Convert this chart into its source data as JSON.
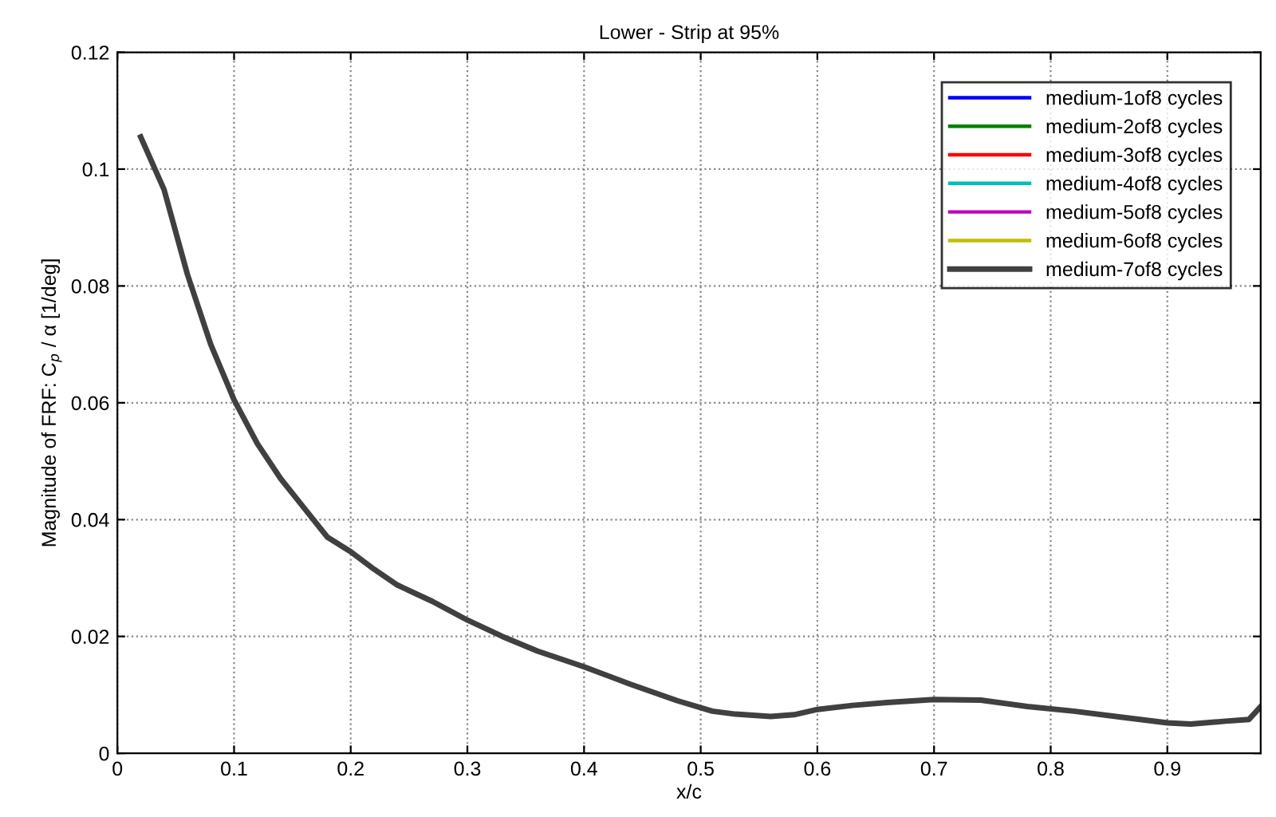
{
  "chart_data": {
    "type": "line",
    "title": "Lower - Strip at 95%",
    "xlabel": "x/c",
    "ylabel": "Magnitude of FRF: C$_{p}$ / α [1/deg]",
    "x": [
      0.02,
      0.04,
      0.06,
      0.08,
      0.1,
      0.12,
      0.14,
      0.16,
      0.18,
      0.2,
      0.22,
      0.24,
      0.27,
      0.3,
      0.33,
      0.36,
      0.4,
      0.44,
      0.48,
      0.51,
      0.53,
      0.56,
      0.58,
      0.6,
      0.63,
      0.66,
      0.7,
      0.74,
      0.78,
      0.82,
      0.86,
      0.9,
      0.92,
      0.95,
      0.97,
      0.98
    ],
    "series": [
      {
        "name": "medium-1of8 cycles",
        "color": "#0000ff",
        "values": [
          null,
          null,
          null,
          null,
          null,
          null,
          null,
          null,
          null,
          null,
          null,
          null,
          null,
          null,
          null,
          null,
          null,
          null,
          null,
          null,
          null,
          null,
          null,
          null,
          null,
          null,
          null,
          null,
          null,
          null,
          null,
          null,
          null,
          null,
          null,
          null
        ]
      },
      {
        "name": "medium-2of8 cycles",
        "color": "#008000",
        "values": [
          null,
          null,
          null,
          null,
          null,
          null,
          null,
          null,
          null,
          null,
          null,
          null,
          null,
          null,
          null,
          null,
          null,
          null,
          null,
          null,
          null,
          null,
          null,
          null,
          null,
          null,
          null,
          null,
          null,
          null,
          null,
          null,
          null,
          null,
          null,
          null
        ]
      },
      {
        "name": "medium-3of8 cycles",
        "color": "#ff0000",
        "values": [
          null,
          null,
          null,
          null,
          null,
          null,
          null,
          null,
          null,
          null,
          null,
          null,
          null,
          null,
          null,
          null,
          null,
          null,
          null,
          null,
          null,
          null,
          null,
          null,
          null,
          null,
          null,
          null,
          null,
          null,
          null,
          null,
          null,
          null,
          null,
          null
        ]
      },
      {
        "name": "medium-4of8 cycles",
        "color": "#00bfbf",
        "values": [
          null,
          null,
          null,
          null,
          null,
          null,
          null,
          null,
          null,
          null,
          null,
          null,
          null,
          null,
          null,
          null,
          null,
          null,
          null,
          null,
          null,
          null,
          null,
          null,
          null,
          null,
          null,
          null,
          null,
          null,
          null,
          null,
          null,
          null,
          null,
          null
        ]
      },
      {
        "name": "medium-5of8 cycles",
        "color": "#bf00bf",
        "values": [
          null,
          null,
          null,
          null,
          null,
          null,
          null,
          null,
          null,
          null,
          null,
          null,
          null,
          null,
          null,
          null,
          null,
          null,
          null,
          null,
          null,
          null,
          null,
          null,
          null,
          null,
          null,
          null,
          null,
          null,
          null,
          null,
          null,
          null,
          null,
          null
        ]
      },
      {
        "name": "medium-6of8 cycles",
        "color": "#bfbf00",
        "values": [
          null,
          null,
          null,
          null,
          null,
          null,
          null,
          null,
          null,
          null,
          null,
          null,
          null,
          null,
          null,
          null,
          null,
          null,
          null,
          null,
          null,
          null,
          null,
          null,
          null,
          null,
          null,
          null,
          null,
          null,
          null,
          null,
          null,
          null,
          null,
          null
        ]
      },
      {
        "name": "medium-7of8 cycles",
        "color": "#404040",
        "values": [
          0.1055,
          0.0965,
          0.082,
          0.07,
          0.0605,
          0.053,
          0.047,
          0.042,
          0.037,
          0.0345,
          0.0315,
          0.0288,
          0.026,
          0.0228,
          0.02,
          0.0175,
          0.0148,
          0.0118,
          0.009,
          0.0072,
          0.0067,
          0.0063,
          0.0066,
          0.0075,
          0.0082,
          0.0087,
          0.0092,
          0.0091,
          0.008,
          0.0072,
          0.0062,
          0.0052,
          0.005,
          0.0055,
          0.0058,
          0.008
        ]
      }
    ],
    "xlim": [
      0,
      0.98
    ],
    "xticks": [
      0,
      0.1,
      0.2,
      0.3,
      0.4,
      0.5,
      0.6,
      0.7,
      0.8,
      0.9
    ],
    "ylim": [
      0,
      0.12
    ],
    "yticks": [
      0,
      0.02,
      0.04,
      0.06,
      0.08,
      0.1,
      0.12
    ],
    "grid": true,
    "legend": "top right",
    "line_style": "solid",
    "marker": "none"
  }
}
